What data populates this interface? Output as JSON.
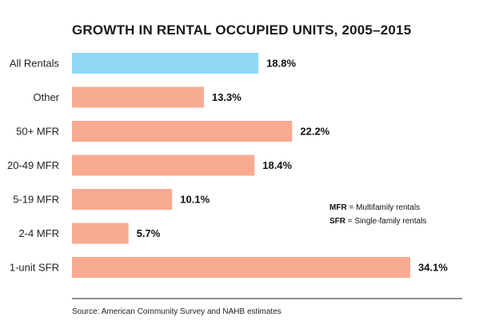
{
  "chart_data": {
    "type": "bar",
    "orientation": "horizontal",
    "title": "GROWTH IN RENTAL OCCUPIED UNITS, 2005–2015",
    "categories": [
      "All Rentals",
      "Other",
      "50+ MFR",
      "20-49 MFR",
      "5-19 MFR",
      "2-4 MFR",
      "1-unit SFR"
    ],
    "values": [
      18.8,
      13.3,
      22.2,
      18.4,
      10.1,
      5.7,
      34.1
    ],
    "value_labels": [
      "18.8%",
      "13.3%",
      "22.2%",
      "18.4%",
      "10.1%",
      "5.7%",
      "34.1%"
    ],
    "xlim": [
      0,
      34.1
    ],
    "grid": false,
    "colors": {
      "highlight": "#8fd8f5",
      "default": "#f9ab91"
    },
    "highlight_index": 0,
    "notes": [
      {
        "abbr": "MFR",
        "text": " = Multifamily rentals"
      },
      {
        "abbr": "SFR",
        "text": " = Single-family rentals"
      }
    ],
    "source": "Source: American Community Survey and NAHB estimates"
  }
}
